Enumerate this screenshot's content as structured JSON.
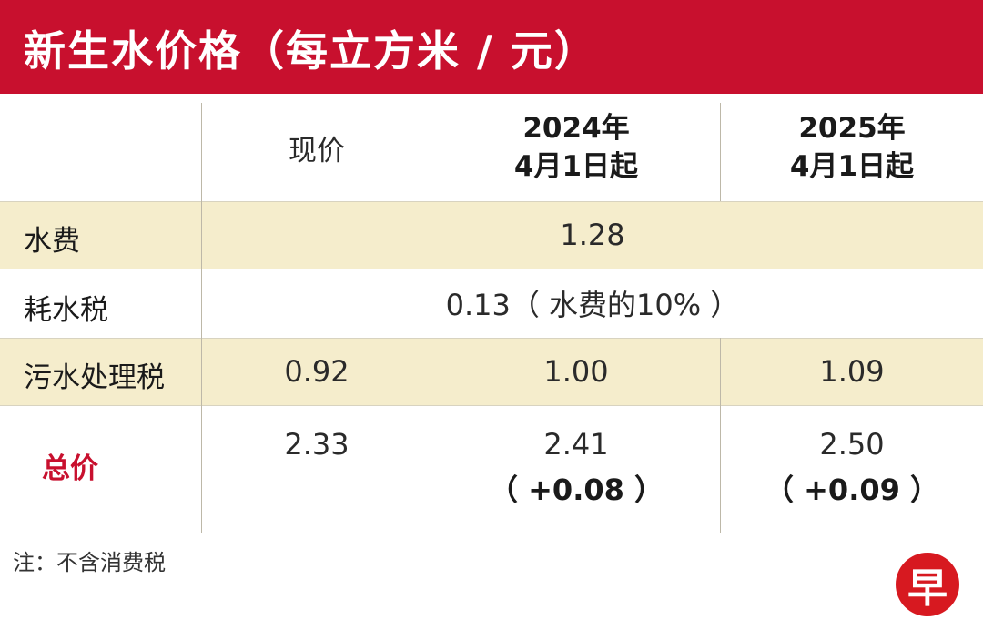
{
  "title": "新生水价格（每立方米 / 元）",
  "columns": {
    "current": "现价",
    "y2024_line1": "2024年",
    "y2024_line2": "4月1日起",
    "y2025_line1": "2025年",
    "y2025_line2": "4月1日起"
  },
  "rows": [
    {
      "label": "水费",
      "merged_value": "1.28"
    },
    {
      "label": "耗水税",
      "merged_value": "0.13（ 水费的10% ）"
    },
    {
      "label": "污水处理税",
      "values": [
        "0.92",
        "1.00",
        "1.09"
      ]
    },
    {
      "label": "总价",
      "values": [
        "2.33",
        "2.41",
        "2.50"
      ],
      "changes": [
        "",
        "（ +0.08 ）",
        "（ +0.09 ）"
      ]
    }
  ],
  "note": "注：不含消费税",
  "logo_text": "早",
  "colors": {
    "brand_red": "#c8102e",
    "highlight_row": "#f5edcc"
  }
}
